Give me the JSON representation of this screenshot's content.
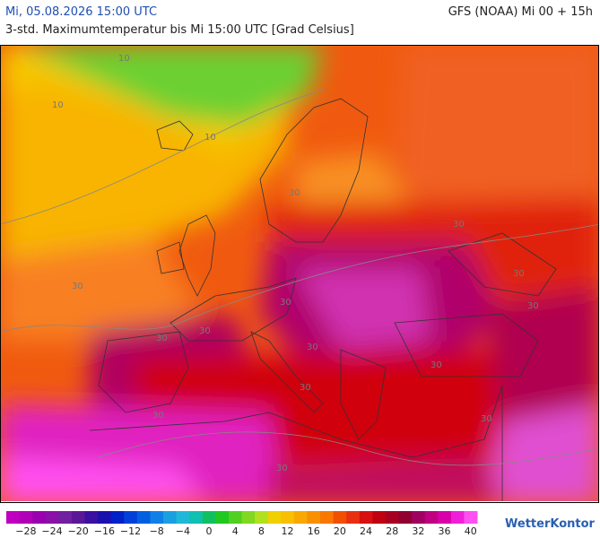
{
  "header": {
    "datetime": "Mi, 05.08.2026 15:00 UTC",
    "model": "GFS (NOAA) Mi 00 + 15h",
    "subtitle": "3-std. Maximumtemperatur bis Mi 15:00 UTC [Grad Celsius]"
  },
  "map": {
    "contour_labels": [
      "10",
      "10",
      "10",
      "30",
      "30",
      "30",
      "30",
      "30",
      "30",
      "30",
      "30",
      "30",
      "30",
      "30",
      "30",
      "30",
      "30"
    ]
  },
  "colorbar": {
    "colors": [
      "#c000c0",
      "#b000b8",
      "#9a00b0",
      "#8a10a8",
      "#7020a0",
      "#5a1898",
      "#3a10a0",
      "#1a10b0",
      "#0020c8",
      "#0040d8",
      "#0060e0",
      "#1080e8",
      "#1aa0e0",
      "#20b8d8",
      "#10c0b0",
      "#10c060",
      "#20c820",
      "#50d020",
      "#80d820",
      "#b0e020",
      "#f0d000",
      "#f8c000",
      "#f8a800",
      "#f89000",
      "#f87800",
      "#f05000",
      "#e83010",
      "#d81010",
      "#c00010",
      "#a80020",
      "#900030",
      "#a00060",
      "#c00080",
      "#d800a8",
      "#f020d8",
      "#ff50f0"
    ],
    "labels": [
      "−28",
      "−24",
      "−20",
      "−16",
      "−12",
      "−8",
      "−4",
      "0",
      "4",
      "8",
      "12",
      "16",
      "20",
      "24",
      "28",
      "32",
      "36",
      "40"
    ]
  },
  "logo": "WetterKontor"
}
